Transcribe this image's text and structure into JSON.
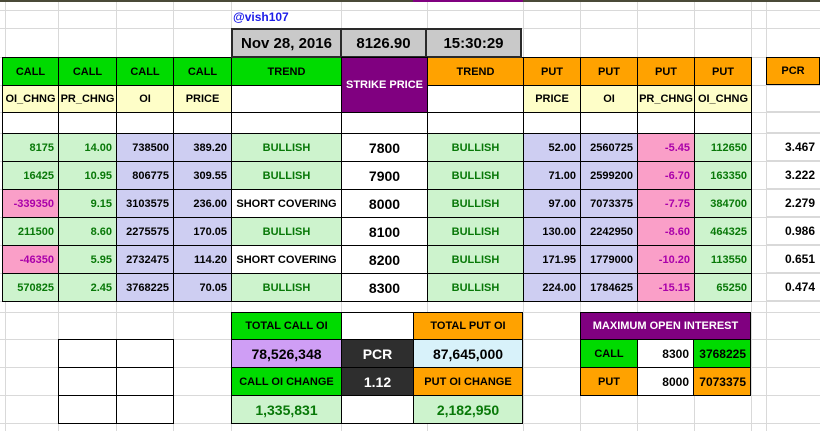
{
  "handle": "@vish107",
  "info_bar": {
    "date": "Nov 28, 2016",
    "price": "8126.90",
    "time": "15:30:29"
  },
  "headers": {
    "call": "CALL",
    "put": "PUT",
    "trend": "TREND",
    "strike": "STRIKE PRICE",
    "pcr": "PCR",
    "call_subs": [
      "OI_CHNG",
      "PR_CHNG",
      "OI",
      "PRICE"
    ],
    "put_subs": [
      "PRICE",
      "OI",
      "PR_CHNG",
      "OI_CHNG"
    ]
  },
  "rows": [
    {
      "oi_chng": "8175",
      "pr_chng": "14.00",
      "oi": "738500",
      "price": "389.20",
      "trend_call": "BULLISH",
      "strike": "7800",
      "trend_put": "BULLISH",
      "p_price": "52.00",
      "p_oi": "2560725",
      "p_pr_chng": "-5.45",
      "p_oi_chng": "112650",
      "pcr": "3.467"
    },
    {
      "oi_chng": "16425",
      "pr_chng": "10.95",
      "oi": "806775",
      "price": "309.55",
      "trend_call": "BULLISH",
      "strike": "7900",
      "trend_put": "BULLISH",
      "p_price": "71.00",
      "p_oi": "2599200",
      "p_pr_chng": "-6.70",
      "p_oi_chng": "163350",
      "pcr": "3.222"
    },
    {
      "oi_chng": "-339350",
      "pr_chng": "9.15",
      "oi": "3103575",
      "price": "236.00",
      "trend_call": "SHORT COVERING",
      "strike": "8000",
      "trend_put": "BULLISH",
      "p_price": "97.00",
      "p_oi": "7073375",
      "p_pr_chng": "-7.75",
      "p_oi_chng": "384700",
      "pcr": "2.279"
    },
    {
      "oi_chng": "211500",
      "pr_chng": "8.60",
      "oi": "2275575",
      "price": "170.05",
      "trend_call": "BULLISH",
      "strike": "8100",
      "trend_put": "BULLISH",
      "p_price": "130.00",
      "p_oi": "2242950",
      "p_pr_chng": "-8.60",
      "p_oi_chng": "464325",
      "pcr": "0.986"
    },
    {
      "oi_chng": "-46350",
      "pr_chng": "5.95",
      "oi": "2732475",
      "price": "114.20",
      "trend_call": "SHORT COVERING",
      "strike": "8200",
      "trend_put": "BULLISH",
      "p_price": "171.95",
      "p_oi": "1779000",
      "p_pr_chng": "-10.20",
      "p_oi_chng": "113550",
      "pcr": "0.651"
    },
    {
      "oi_chng": "570825",
      "pr_chng": "2.45",
      "oi": "3768225",
      "price": "70.05",
      "trend_call": "BULLISH",
      "strike": "8300",
      "trend_put": "BULLISH",
      "p_price": "224.00",
      "p_oi": "1784625",
      "p_pr_chng": "-15.15",
      "p_oi_chng": "65250",
      "pcr": "0.474"
    }
  ],
  "totals": {
    "total_call_oi_label": "TOTAL CALL OI",
    "total_call_oi": "78,526,348",
    "pcr_label": "PCR",
    "pcr_value": "1.12",
    "total_put_oi_label": "TOTAL PUT OI",
    "total_put_oi": "87,645,000",
    "call_oi_change_label": "CALL OI CHANGE",
    "call_oi_change": "1,335,831",
    "put_oi_change_label": "PUT OI CHANGE",
    "put_oi_change": "2,182,950"
  },
  "max_oi": {
    "title": "MAXIMUM OPEN INTEREST",
    "rows": [
      {
        "label": "CALL",
        "strike": "8300",
        "oi": "3768225"
      },
      {
        "label": "PUT",
        "strike": "8000",
        "oi": "7073375"
      }
    ]
  },
  "colors": {
    "header_green": "#00db00",
    "header_orange": "#ffa200",
    "purple": "#800080",
    "lavender": "#cecef2",
    "light_green": "#cdf3cd",
    "pink": "#fa9fc8",
    "light_purple": "#cf9ef5",
    "light_cyan": "#d8f2fa",
    "dark_cell": "#2e2e2e",
    "gray_bar": "#c9c9c9",
    "green_text": "#087808",
    "magenta_text": "#aa00aa",
    "handle_blue": "#1c1ce8"
  }
}
